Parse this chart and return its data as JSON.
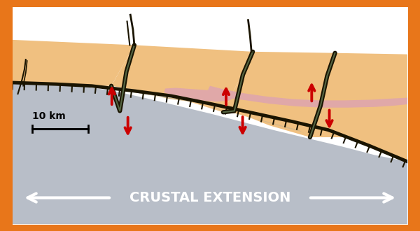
{
  "border_color": "#E8761A",
  "upper_crust_color": "#F0C080",
  "lower_crust_color": "#B8BEC8",
  "tan_wedge_color": "#D4B88A",
  "pink_body_color": "#E0A8A8",
  "fault_color": "#1a1400",
  "arrow_color": "#CC0000",
  "text_color": "#ffffff",
  "white_color": "#ffffff",
  "title": "CRUSTAL EXTENSION",
  "scale_label": "10 km",
  "figsize": [
    6.0,
    3.3
  ],
  "dpi": 100
}
